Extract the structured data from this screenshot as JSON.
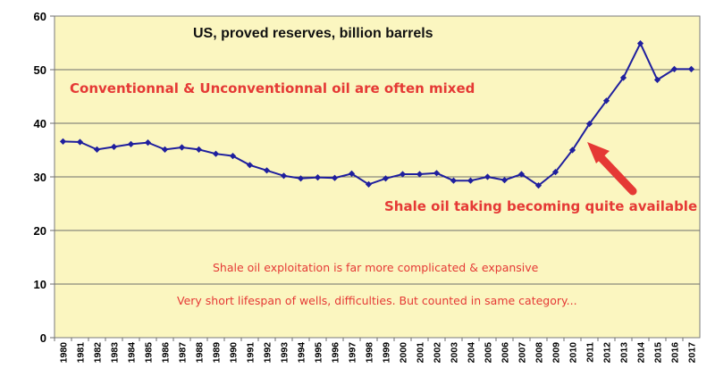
{
  "chart_data": {
    "type": "line",
    "title": "US, proved reserves, billion barrels",
    "xlabel": "",
    "ylabel": "",
    "ylim": [
      0,
      60
    ],
    "yticks": [
      0,
      10,
      20,
      30,
      40,
      50,
      60
    ],
    "grid": true,
    "legend": "none",
    "series": [
      {
        "x": [
          1980,
          1981,
          1982,
          1983,
          1984,
          1985,
          1986,
          1987,
          1988,
          1989,
          1990,
          1991,
          1992,
          1993,
          1994,
          1995,
          1996,
          1997,
          1998,
          1999,
          2000,
          2001,
          2002,
          2003,
          2004,
          2005,
          2006,
          2007,
          2008,
          2009,
          2010,
          2011,
          2012,
          2013,
          2014,
          2015,
          2016,
          2017
        ],
        "values": [
          36.6,
          36.5,
          35.1,
          35.6,
          36.1,
          36.4,
          35.1,
          35.5,
          35.1,
          34.3,
          33.9,
          32.2,
          31.2,
          30.2,
          29.7,
          29.9,
          29.8,
          30.6,
          28.6,
          29.7,
          30.5,
          30.5,
          30.7,
          29.3,
          29.3,
          30.0,
          29.4,
          30.5,
          28.4,
          30.9,
          35.0,
          39.9,
          44.2,
          48.5,
          54.9,
          48.1,
          50.1,
          50.1
        ]
      }
    ],
    "annotations": [
      "Conventionnal & Unconventionnal oil are often mixed",
      "Shale oil taking becoming quite available",
      "Shale oil exploitation is far more complicated & expansive",
      "Very short lifespan of wells, difficulties. But counted in same category..."
    ],
    "colors": {
      "line": "#1f1f9e",
      "plot_background": "#fbf6c0",
      "annotation": "#e53935",
      "arrow": "#e53935"
    }
  }
}
